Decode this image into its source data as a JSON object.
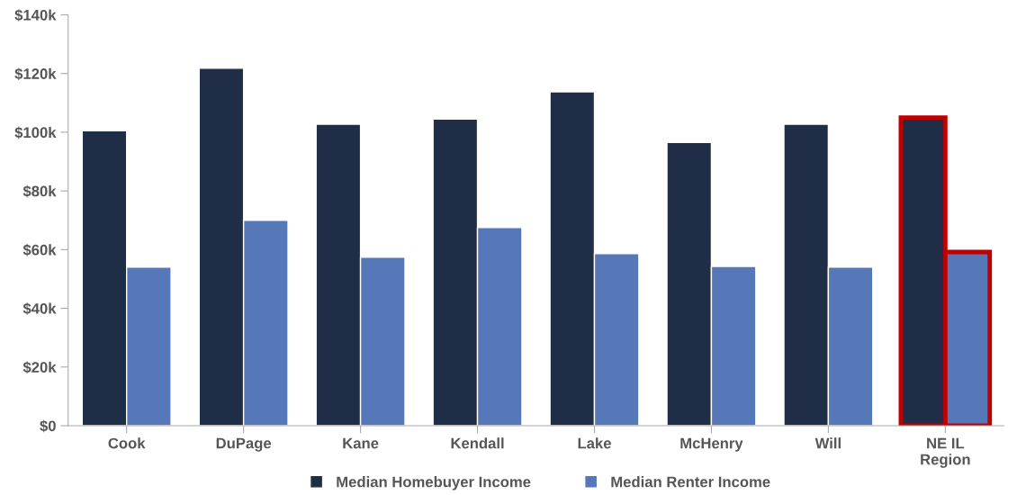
{
  "chart_data": {
    "type": "bar",
    "categories": [
      "Cook",
      "DuPage",
      "Kane",
      "Kendall",
      "Lake",
      "McHenry",
      "Will",
      "NE IL\nRegion"
    ],
    "series": [
      {
        "name": "Median Homebuyer Income",
        "color": "#1f2d47",
        "values": [
          100500,
          121800,
          102700,
          104500,
          113800,
          96500,
          102700,
          105000
        ]
      },
      {
        "name": "Median Renter Income",
        "color": "#5677b8",
        "values": [
          54000,
          70000,
          57400,
          67500,
          58600,
          54300,
          54000,
          59200
        ]
      }
    ],
    "ylim": [
      0,
      140000
    ],
    "yticks": [
      {
        "value": 0,
        "label": "$0"
      },
      {
        "value": 20000,
        "label": "$20k"
      },
      {
        "value": 40000,
        "label": "$40k"
      },
      {
        "value": 60000,
        "label": "$60k"
      },
      {
        "value": 80000,
        "label": "$80k"
      },
      {
        "value": 100000,
        "label": "$100k"
      },
      {
        "value": 120000,
        "label": "$120k"
      },
      {
        "value": 140000,
        "label": "$140k"
      }
    ],
    "grid": false,
    "legend": "bottom"
  }
}
